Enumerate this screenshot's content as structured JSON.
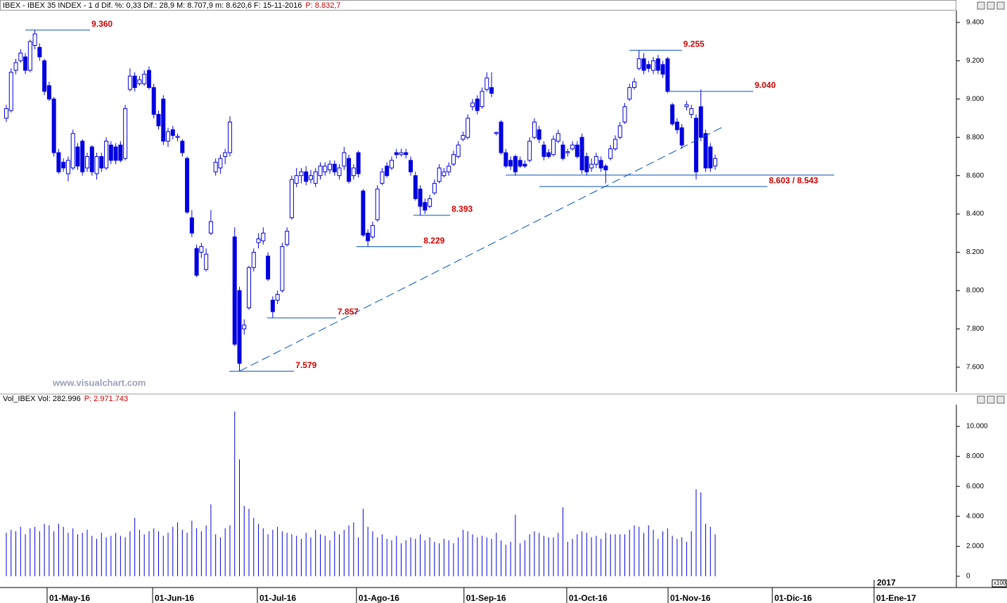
{
  "header": {
    "text": "IBEX - IBEX 35 INDEX - 1 d Dif. %: 0,33 Dif.: 28,9 M: 8.707,9 m: 8.620,6 F: 15-11-2016",
    "last": "P: 8.832,7"
  },
  "watermark": "www.visualchart.com",
  "chart_data": [
    {
      "type": "candlestick",
      "color": "#0000e0",
      "xlim": [
        -1.33,
        199.7
      ],
      "ylim": [
        7471,
        9462
      ],
      "xticks": [
        {
          "value": 8.57,
          "label": "01-May-16"
        },
        {
          "value": 30.75,
          "label": "01-Jun-16"
        },
        {
          "value": 52.77,
          "label": "01-Jul-16"
        },
        {
          "value": 73.6,
          "label": "01-Ago-16"
        },
        {
          "value": 96.2,
          "label": "01-Sep-16"
        },
        {
          "value": 117.8,
          "label": "01-Oct-16"
        },
        {
          "value": 139.1,
          "label": "01-Nov-16"
        },
        {
          "value": 161.0,
          "label": "01-Dic-16"
        },
        {
          "value": 182.4,
          "label": "01-Ene-17"
        }
      ],
      "year_ticks": [
        {
          "value": 182.4,
          "label": "2017"
        }
      ],
      "yticks": [
        {
          "value": 7600,
          "label": "7.600"
        },
        {
          "value": 7800,
          "label": "7.800"
        },
        {
          "value": 8000,
          "label": "8.000"
        },
        {
          "value": 8200,
          "label": "8.200"
        },
        {
          "value": 8400,
          "label": "8.400"
        },
        {
          "value": 8600,
          "label": "8.600"
        },
        {
          "value": 8800,
          "label": "8.800"
        },
        {
          "value": 9000,
          "label": "9.000"
        },
        {
          "value": 9200,
          "label": "9.200"
        },
        {
          "value": 9400,
          "label": "9.400"
        }
      ],
      "open": [
        8900,
        8940,
        9150,
        9200,
        9220,
        9150,
        9280,
        9270,
        9200,
        9070,
        9000,
        8720,
        8670,
        8610,
        8640,
        8750,
        8780,
        8640,
        8750,
        8610,
        8700,
        8640,
        8760,
        8750,
        8760,
        8690,
        9050,
        9120,
        9080,
        9080,
        9150,
        9060,
        8920,
        9000,
        8780,
        8840,
        8800,
        8780,
        8690,
        8380,
        8220,
        8200,
        8110,
        8300,
        8620,
        8640,
        8700,
        8720,
        8280,
        8000,
        7800,
        7910,
        8120,
        8250,
        8260,
        8180,
        7950,
        7950,
        8000,
        8240,
        8380,
        8560,
        8600,
        8620,
        8580,
        8560,
        8600,
        8620,
        8630,
        8660,
        8600,
        8650,
        8690,
        8600,
        8720,
        8520,
        8300,
        8280,
        8370,
        8560,
        8650,
        8640,
        8720,
        8710,
        8720,
        8680,
        8600,
        8530,
        8460,
        8440,
        8510,
        8570,
        8600,
        8620,
        8660,
        8700,
        8790,
        8800,
        8960,
        9000,
        8960,
        9050,
        9060,
        8820,
        8880,
        8720,
        8680,
        8700,
        8680,
        8660,
        8680,
        8800,
        8840,
        8760,
        8720,
        8710,
        8780,
        8760,
        8720,
        8740,
        8760,
        8800,
        8700,
        8640,
        8660,
        8680,
        8650,
        8690,
        8740,
        8800,
        8880,
        9000,
        9060,
        9160,
        9210,
        9180,
        9150,
        9210,
        9180,
        9210,
        8970,
        8880,
        8850,
        8960,
        8920,
        8900,
        8960,
        8820,
        8750,
        8650
      ],
      "high": [
        8970,
        9160,
        9210,
        9260,
        9240,
        9310,
        9360,
        9290,
        9210,
        9090,
        9010,
        8740,
        8690,
        8700,
        8840,
        8770,
        8790,
        8720,
        8760,
        8720,
        8720,
        8800,
        8780,
        8770,
        8780,
        8970,
        9160,
        9140,
        9120,
        9150,
        9170,
        9080,
        8940,
        9020,
        8850,
        8860,
        8820,
        8790,
        8700,
        8420,
        8240,
        8250,
        8220,
        8420,
        8690,
        8710,
        8740,
        8910,
        8330,
        8020,
        7850,
        8130,
        8220,
        8300,
        8330,
        8200,
        7970,
        8000,
        8250,
        8330,
        8600,
        8640,
        8640,
        8650,
        8630,
        8640,
        8670,
        8670,
        8680,
        8680,
        8660,
        8750,
        8710,
        8660,
        8730,
        8530,
        8320,
        8360,
        8550,
        8640,
        8670,
        8700,
        8740,
        8740,
        8740,
        8700,
        8620,
        8550,
        8480,
        8500,
        8580,
        8660,
        8640,
        8670,
        8730,
        8780,
        8830,
        8920,
        9000,
        9020,
        9060,
        9140,
        9140,
        8830,
        8890,
        8740,
        8700,
        8710,
        8700,
        8680,
        8800,
        8900,
        8860,
        8780,
        8740,
        8810,
        8840,
        8780,
        8740,
        8780,
        8780,
        8820,
        8720,
        8690,
        8720,
        8700,
        8660,
        8760,
        8810,
        8880,
        8980,
        9080,
        9110,
        9255,
        9240,
        9200,
        9220,
        9230,
        9200,
        9220,
        8980,
        8900,
        8870,
        8990,
        8970,
        8920,
        9050,
        8840,
        8770,
        8710
      ],
      "low": [
        8880,
        8930,
        9130,
        9190,
        9130,
        9140,
        9260,
        9200,
        9020,
        8990,
        8700,
        8610,
        8620,
        8570,
        8630,
        8630,
        8600,
        8620,
        8600,
        8580,
        8620,
        8630,
        8660,
        8660,
        8670,
        8680,
        9040,
        9040,
        9070,
        9070,
        9050,
        8900,
        8840,
        8760,
        8750,
        8790,
        8780,
        8700,
        8400,
        8280,
        8070,
        8170,
        8100,
        8290,
        8600,
        8610,
        8660,
        8700,
        7710,
        7579,
        7770,
        7900,
        8100,
        8220,
        8240,
        8050,
        7857,
        7930,
        7990,
        8230,
        8370,
        8540,
        8560,
        8550,
        8560,
        8540,
        8580,
        8600,
        8610,
        8600,
        8580,
        8630,
        8560,
        8580,
        8590,
        8280,
        8229,
        8270,
        8360,
        8550,
        8590,
        8630,
        8690,
        8700,
        8690,
        8600,
        8470,
        8393,
        8400,
        8430,
        8500,
        8560,
        8590,
        8600,
        8650,
        8690,
        8780,
        8790,
        8940,
        8920,
        8950,
        9040,
        9010,
        8810,
        8710,
        8640,
        8630,
        8600,
        8640,
        8640,
        8670,
        8790,
        8770,
        8680,
        8690,
        8700,
        8770,
        8680,
        8700,
        8730,
        8690,
        8610,
        8600,
        8620,
        8640,
        8620,
        8560,
        8680,
        8730,
        8790,
        8870,
        8990,
        9050,
        9150,
        9130,
        9140,
        9130,
        9130,
        9110,
        9030,
        8860,
        8820,
        8740,
        8940,
        8900,
        8580,
        8780,
        8620,
        8620,
        8630
      ],
      "close": [
        8950,
        9140,
        9190,
        9240,
        9150,
        9300,
        9340,
        9220,
        9040,
        9000,
        8720,
        8620,
        8640,
        8680,
        8820,
        8650,
        8620,
        8700,
        8620,
        8700,
        8640,
        8780,
        8680,
        8680,
        8680,
        8950,
        9120,
        9060,
        9100,
        9130,
        9060,
        8920,
        8860,
        8780,
        8830,
        8810,
        8805,
        8720,
        8410,
        8300,
        8080,
        8230,
        8190,
        8360,
        8670,
        8690,
        8720,
        8880,
        7720,
        7620,
        7820,
        8120,
        8200,
        8270,
        8300,
        8060,
        7890,
        7980,
        8230,
        8310,
        8580,
        8600,
        8620,
        8570,
        8600,
        8620,
        8650,
        8650,
        8660,
        8620,
        8640,
        8720,
        8570,
        8640,
        8610,
        8290,
        8260,
        8340,
        8530,
        8620,
        8600,
        8680,
        8710,
        8720,
        8710,
        8620,
        8480,
        8440,
        8420,
        8480,
        8560,
        8640,
        8620,
        8650,
        8710,
        8760,
        8810,
        8900,
        8980,
        8940,
        9040,
        9110,
        9030,
        8825,
        8720,
        8650,
        8650,
        8620,
        8650,
        8650,
        8780,
        8880,
        8790,
        8700,
        8700,
        8790,
        8820,
        8690,
        8725,
        8760,
        8700,
        8630,
        8620,
        8660,
        8700,
        8640,
        8630,
        8740,
        8790,
        8860,
        8960,
        9060,
        9090,
        9210,
        9150,
        9160,
        9200,
        9150,
        9130,
        9040,
        8870,
        8840,
        8760,
        8970,
        8950,
        8620,
        8800,
        8640,
        8640,
        8690
      ],
      "levels": [
        {
          "label": "9.360",
          "value": 9360,
          "span": [
            4,
            17.6
          ]
        },
        {
          "label": "9.255",
          "value": 9255,
          "span": [
            131,
            142
          ]
        },
        {
          "label": "9.040",
          "value": 9040,
          "span": [
            139,
            157
          ]
        },
        {
          "label": "8.603 / 8.543",
          "values": [
            8603,
            8543
          ],
          "spans": [
            [
              105,
              174
            ],
            [
              112,
              160
            ]
          ]
        },
        {
          "label": "8.393",
          "value": 8393,
          "span": [
            85.6,
            93.3
          ]
        },
        {
          "label": "8.229",
          "value": 8229,
          "span": [
            73.6,
            87.4
          ]
        },
        {
          "label": "7.857",
          "value": 7857,
          "span": [
            54.8,
            69.3
          ]
        },
        {
          "label": "7.579",
          "value": 7579,
          "span": [
            46.9,
            60.5
          ]
        }
      ],
      "trendline": {
        "x": [
          49,
          150.5
        ],
        "y": [
          7579,
          8853
        ]
      }
    },
    {
      "type": "bar",
      "title": "Vol_IBEX Vol: 282.996",
      "last": "P: 2.971.743",
      "unit": "x100",
      "color": "#0000e0",
      "ylim": [
        -751,
        11455
      ],
      "yticks": [
        0,
        {
          "value": 2000,
          "label": "2.000"
        },
        {
          "value": 4000,
          "label": "4.000"
        },
        {
          "value": 6000,
          "label": "6.000"
        },
        {
          "value": 8000,
          "label": "8.000"
        },
        {
          "value": 10000,
          "label": "10.000"
        }
      ],
      "values": [
        2900,
        3100,
        3000,
        3300,
        2800,
        3200,
        3300,
        3000,
        3500,
        3400,
        3000,
        3500,
        3300,
        2900,
        3200,
        2800,
        2900,
        3100,
        2700,
        2500,
        2900,
        2600,
        2700,
        2900,
        2700,
        2600,
        3000,
        3900,
        3100,
        2800,
        3000,
        3200,
        3000,
        2700,
        2900,
        3300,
        3600,
        3100,
        2900,
        3700,
        3200,
        3000,
        3400,
        4800,
        2800,
        2600,
        3200,
        3400,
        11000,
        7800,
        4700,
        4500,
        3900,
        3500,
        3200,
        2800,
        3100,
        3300,
        3000,
        2900,
        2800,
        2700,
        2500,
        2900,
        2600,
        3100,
        2800,
        2700,
        2400,
        3000,
        2800,
        3100,
        3400,
        3600,
        2600,
        4500,
        3300,
        3000,
        2600,
        2800,
        2500,
        2400,
        2700,
        2200,
        2400,
        2600,
        2500,
        2800,
        2400,
        2600,
        2300,
        2200,
        2500,
        2400,
        2200,
        2600,
        3100,
        3000,
        2800,
        2600,
        2700,
        2600,
        2500,
        2900,
        2400,
        2100,
        2300,
        4100,
        2200,
        2400,
        2800,
        3000,
        2900,
        2700,
        2600,
        2600,
        2900,
        4600,
        2300,
        2500,
        2800,
        3000,
        2900,
        2600,
        2700,
        2500,
        2900,
        2800,
        2800,
        2800,
        2800,
        3100,
        3400,
        3300,
        2900,
        3400,
        3100,
        2500,
        3000,
        3200,
        2700,
        2500,
        2600,
        2300,
        3000,
        5800,
        5600,
        3500,
        3300,
        2800
      ]
    }
  ]
}
